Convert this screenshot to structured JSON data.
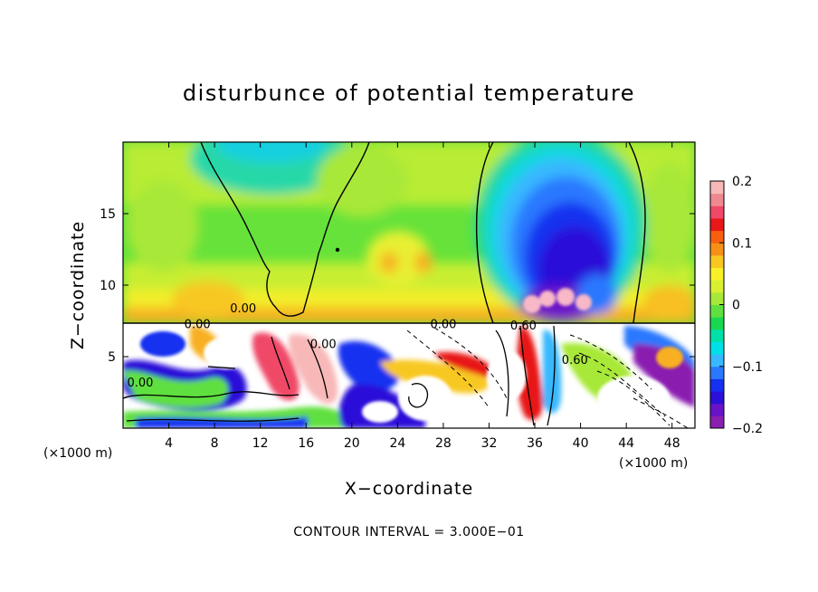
{
  "chart_data": {
    "type": "heatmap",
    "title": "disturbunce of potential temperature",
    "xlabel": "X−coordinate",
    "ylabel": "Z−coordinate",
    "x_unit": "(×1000 m)",
    "x_range": [
      0,
      50
    ],
    "y_range": [
      0,
      20
    ],
    "x_ticks": [
      4,
      8,
      12,
      16,
      20,
      24,
      28,
      32,
      36,
      40,
      44,
      48
    ],
    "y_ticks": [
      5,
      10,
      15
    ],
    "colorbar": {
      "range": [
        -0.2,
        0.2
      ],
      "ticks": [
        {
          "value": 0.2,
          "label": "0.2"
        },
        {
          "value": 0.1,
          "label": "0.1"
        },
        {
          "value": 0,
          "label": "0"
        },
        {
          "value": -0.1,
          "label": "−0.1"
        },
        {
          "value": -0.2,
          "label": "−0.2"
        }
      ],
      "colors": [
        "#8a1fb0",
        "#6a12c8",
        "#2a10d8",
        "#1530f0",
        "#2a78ff",
        "#38b8ff",
        "#00e0e8",
        "#00e0a8",
        "#18d850",
        "#60e040",
        "#a8e838",
        "#d8f030",
        "#f8f028",
        "#f8c820",
        "#f89018",
        "#f86010",
        "#e81818",
        "#f04868",
        "#f08890",
        "#f8b8b8"
      ]
    },
    "contour_labels": [
      {
        "x": 10.5,
        "y": 8.1,
        "text": "0.00"
      },
      {
        "x": 6.5,
        "y": 7.0,
        "text": "0.00"
      },
      {
        "x": 1.5,
        "y": 2.9,
        "text": "0.00"
      },
      {
        "x": 17.5,
        "y": 5.6,
        "text": "0.00"
      },
      {
        "x": 28.0,
        "y": 7.0,
        "text": "0.00"
      },
      {
        "x": 35.0,
        "y": 6.9,
        "text": "0.60"
      },
      {
        "x": 39.5,
        "y": 4.5,
        "text": "0.60"
      }
    ],
    "contour_interval_note": "CONTOUR INTERVAL = 3.000E−01"
  }
}
